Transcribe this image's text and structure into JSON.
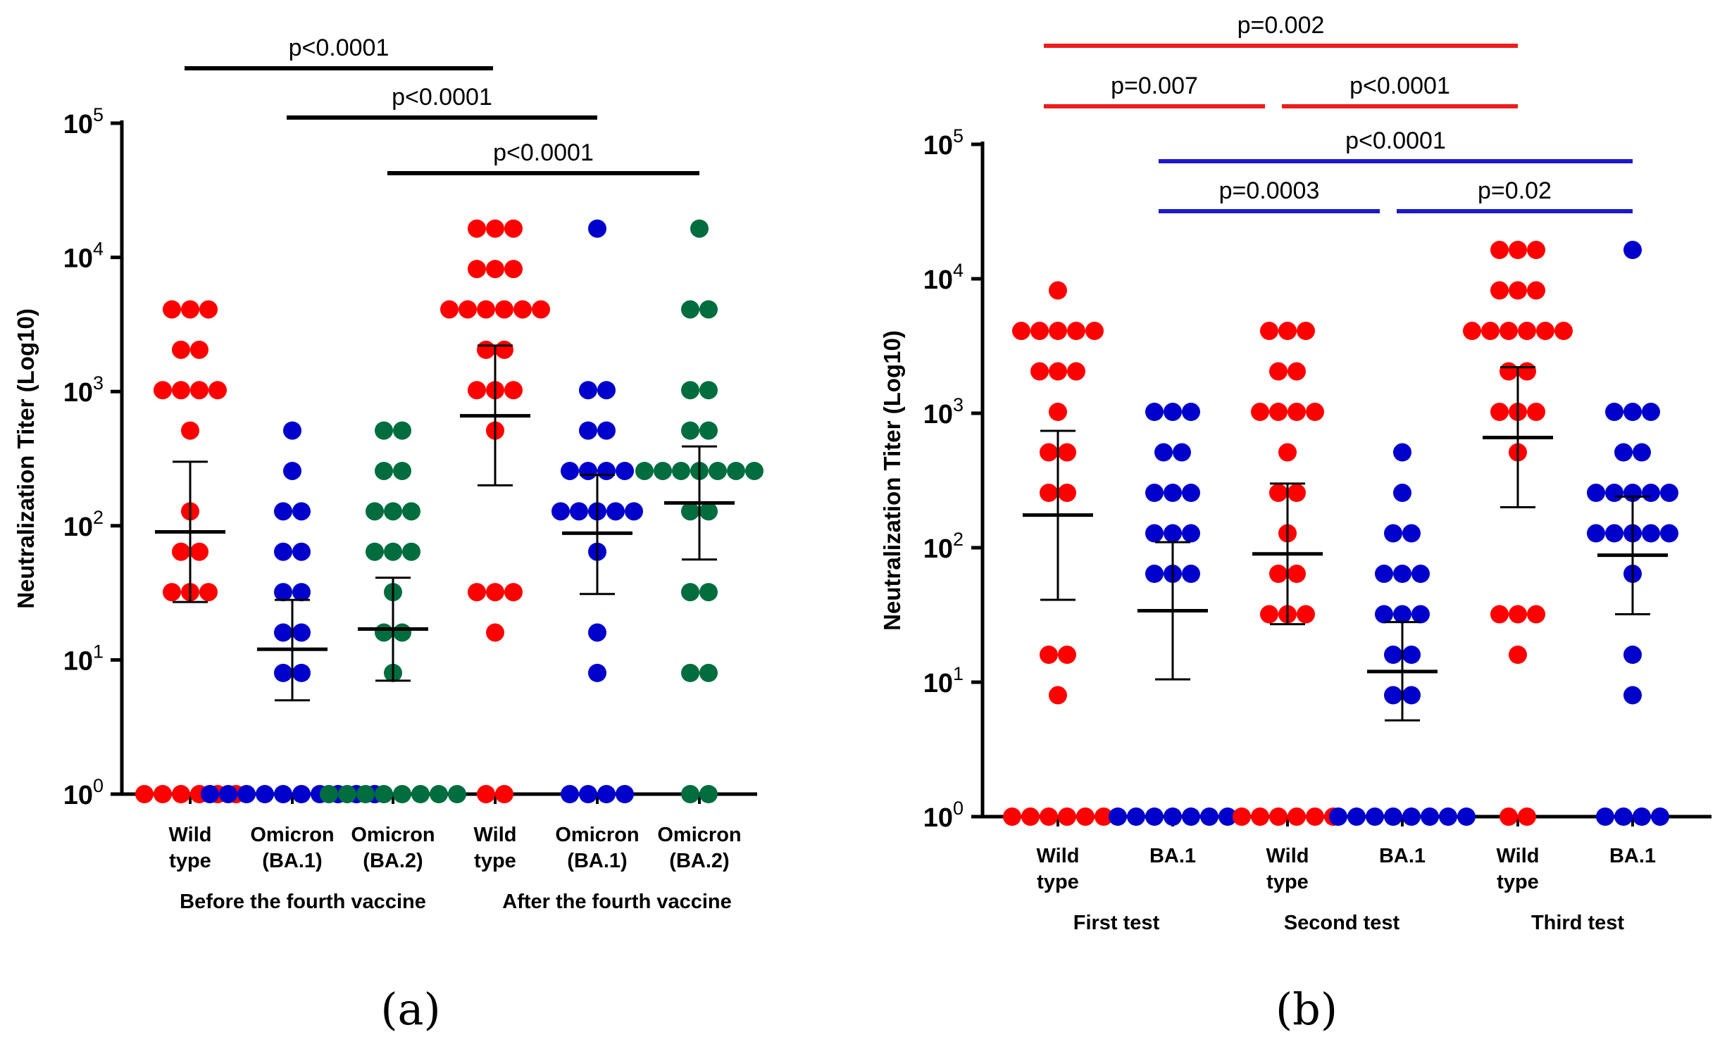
{
  "colors": {
    "wild": "#ff0000",
    "ba1": "#0000cc",
    "ba2": "#006d3e",
    "axis": "#000000",
    "bar_black": "#000000",
    "bar_red": "#ee1c1c",
    "bar_blue": "#1a1acc"
  },
  "chart_data": [
    {
      "panel": "a",
      "panel_label": "(a)",
      "type": "scatter",
      "title": "",
      "ylabel": "Neutralization Titer (Log10)",
      "yscale": "log10",
      "ylim": [
        1,
        100000
      ],
      "y_ticks": [
        {
          "base": "10",
          "exp": "0",
          "value": 1
        },
        {
          "base": "10",
          "exp": "1",
          "value": 10
        },
        {
          "base": "10",
          "exp": "2",
          "value": 100
        },
        {
          "base": "10",
          "exp": "3",
          "value": 1000
        },
        {
          "base": "10",
          "exp": "4",
          "value": 10000
        },
        {
          "base": "10",
          "exp": "5",
          "value": 100000
        }
      ],
      "groups": [
        {
          "label": "Before the fourth vaccine",
          "from": 0,
          "to": 2
        },
        {
          "label": "After the fourth vaccine",
          "from": 3,
          "to": 5
        }
      ],
      "comparisons": [
        {
          "label": "p<0.0001",
          "from": 0,
          "to": 3,
          "level": 0,
          "color": "black"
        },
        {
          "label": "p<0.0001",
          "from": 1,
          "to": 4,
          "level": 1,
          "color": "black"
        },
        {
          "label": "p<0.0001",
          "from": 2,
          "to": 5,
          "level": 2,
          "color": "black"
        }
      ],
      "series": [
        {
          "name": "Wild type",
          "label_lines": [
            "Wild",
            "type"
          ],
          "color": "wild",
          "values": [
            4096,
            4096,
            4096,
            2048,
            2048,
            1024,
            1024,
            1024,
            1024,
            512,
            128,
            64,
            64,
            32,
            32,
            32,
            1,
            1,
            1,
            1,
            1,
            1
          ],
          "center": 90,
          "err_low": 27,
          "err_high": 300
        },
        {
          "name": "Omicron (BA.1)",
          "label_lines": [
            "Omicron",
            "(BA.1)"
          ],
          "color": "ba1",
          "values": [
            512,
            256,
            128,
            128,
            64,
            64,
            32,
            32,
            16,
            16,
            8,
            8,
            1,
            1,
            1,
            1,
            1,
            1,
            1,
            1,
            1,
            1
          ],
          "center": 12,
          "err_low": 5,
          "err_high": 28
        },
        {
          "name": "Omicron (BA.2)",
          "label_lines": [
            "Omicron",
            "(BA.2)"
          ],
          "color": "ba2",
          "values": [
            512,
            512,
            256,
            256,
            128,
            128,
            128,
            64,
            64,
            64,
            32,
            16,
            16,
            8,
            1,
            1,
            1,
            1,
            1,
            1,
            1,
            1
          ],
          "center": 17,
          "err_low": 7,
          "err_high": 41
        },
        {
          "name": "Wild type",
          "label_lines": [
            "Wild",
            "type"
          ],
          "color": "wild",
          "values": [
            16384,
            16384,
            16384,
            8192,
            8192,
            8192,
            4096,
            4096,
            4096,
            4096,
            4096,
            4096,
            2048,
            2048,
            1024,
            1024,
            1024,
            512,
            32,
            32,
            32,
            16,
            1,
            1
          ],
          "center": 660,
          "err_low": 200,
          "err_high": 2200
        },
        {
          "name": "Omicron (BA.1)",
          "label_lines": [
            "Omicron",
            "(BA.1)"
          ],
          "color": "ba1",
          "values": [
            16384,
            1024,
            1024,
            512,
            512,
            256,
            256,
            256,
            256,
            128,
            128,
            128,
            128,
            128,
            64,
            16,
            8,
            1,
            1,
            1,
            1
          ],
          "center": 88,
          "err_low": 31,
          "err_high": 240
        },
        {
          "name": "Omicron (BA.2)",
          "label_lines": [
            "Omicron",
            "(BA.2)"
          ],
          "color": "ba2",
          "values": [
            16384,
            4096,
            4096,
            1024,
            1024,
            512,
            512,
            256,
            256,
            256,
            256,
            256,
            256,
            256,
            128,
            128,
            32,
            32,
            8,
            8,
            1,
            1
          ],
          "center": 148,
          "err_low": 56,
          "err_high": 390
        }
      ]
    },
    {
      "panel": "b",
      "panel_label": "(b)",
      "type": "scatter",
      "title": "",
      "ylabel": "Neutralization Titer (Log10)",
      "yscale": "log10",
      "ylim": [
        1,
        100000
      ],
      "y_ticks": [
        {
          "base": "10",
          "exp": "0",
          "value": 1
        },
        {
          "base": "10",
          "exp": "1",
          "value": 10
        },
        {
          "base": "10",
          "exp": "2",
          "value": 100
        },
        {
          "base": "10",
          "exp": "3",
          "value": 1000
        },
        {
          "base": "10",
          "exp": "4",
          "value": 10000
        },
        {
          "base": "10",
          "exp": "5",
          "value": 100000
        }
      ],
      "groups": [
        {
          "label": "First test",
          "from": 0,
          "to": 1
        },
        {
          "label": "Second test",
          "from": 2,
          "to": 3
        },
        {
          "label": "Third test",
          "from": 4,
          "to": 5
        }
      ],
      "comparisons": [
        {
          "label": "p=0.002",
          "from": 0,
          "to": 4,
          "level": 0,
          "color": "red"
        },
        {
          "label": "p=0.007",
          "from": 0,
          "to": 2,
          "level": 1,
          "color": "red",
          "trim_end": true
        },
        {
          "label": "p<0.0001",
          "from": 2,
          "to": 4,
          "level": 1,
          "color": "red",
          "trim_start": true
        },
        {
          "label": "p<0.0001",
          "from": 1,
          "to": 5,
          "level": 2,
          "color": "blue"
        },
        {
          "label": "p=0.0003",
          "from": 1,
          "to": 3,
          "level": 3,
          "color": "blue",
          "trim_end": true
        },
        {
          "label": "p=0.02",
          "from": 3,
          "to": 5,
          "level": 3,
          "color": "blue",
          "trim_start": true
        }
      ],
      "series": [
        {
          "name": "Wild type",
          "label_lines": [
            "Wild",
            "type"
          ],
          "color": "wild",
          "values": [
            8192,
            4096,
            4096,
            4096,
            4096,
            4096,
            2048,
            2048,
            2048,
            1024,
            512,
            512,
            256,
            256,
            16,
            16,
            8,
            1,
            1,
            1,
            1,
            1,
            1
          ],
          "center": 175,
          "err_low": 41,
          "err_high": 740
        },
        {
          "name": "BA.1",
          "label_lines": [
            "BA.1"
          ],
          "color": "ba1",
          "values": [
            1024,
            1024,
            1024,
            512,
            512,
            256,
            256,
            256,
            128,
            128,
            128,
            64,
            64,
            64,
            1,
            1,
            1,
            1,
            1,
            1,
            1
          ],
          "center": 34,
          "err_low": 10.5,
          "err_high": 110
        },
        {
          "name": "Wild type",
          "label_lines": [
            "Wild",
            "type"
          ],
          "color": "wild",
          "values": [
            4096,
            4096,
            4096,
            2048,
            2048,
            1024,
            1024,
            1024,
            1024,
            512,
            256,
            256,
            128,
            64,
            64,
            32,
            32,
            32,
            1,
            1,
            1,
            1,
            1,
            1
          ],
          "center": 90,
          "err_low": 27,
          "err_high": 300
        },
        {
          "name": "BA.1",
          "label_lines": [
            "BA.1"
          ],
          "color": "ba1",
          "values": [
            512,
            256,
            128,
            128,
            64,
            64,
            64,
            32,
            32,
            32,
            16,
            16,
            8,
            8,
            1,
            1,
            1,
            1,
            1,
            1,
            1,
            1
          ],
          "center": 12,
          "err_low": 5.2,
          "err_high": 28
        },
        {
          "name": "Wild type",
          "label_lines": [
            "Wild",
            "type"
          ],
          "color": "wild",
          "values": [
            16384,
            16384,
            16384,
            8192,
            8192,
            8192,
            4096,
            4096,
            4096,
            4096,
            4096,
            4096,
            2048,
            2048,
            1024,
            1024,
            1024,
            512,
            32,
            32,
            32,
            16,
            1,
            1
          ],
          "center": 660,
          "err_low": 200,
          "err_high": 2200
        },
        {
          "name": "BA.1",
          "label_lines": [
            "BA.1"
          ],
          "color": "ba1",
          "values": [
            16384,
            1024,
            1024,
            1024,
            512,
            512,
            256,
            256,
            256,
            256,
            256,
            128,
            128,
            128,
            128,
            128,
            64,
            16,
            8,
            1,
            1,
            1,
            1
          ],
          "center": 88,
          "err_low": 32,
          "err_high": 240
        }
      ]
    }
  ]
}
